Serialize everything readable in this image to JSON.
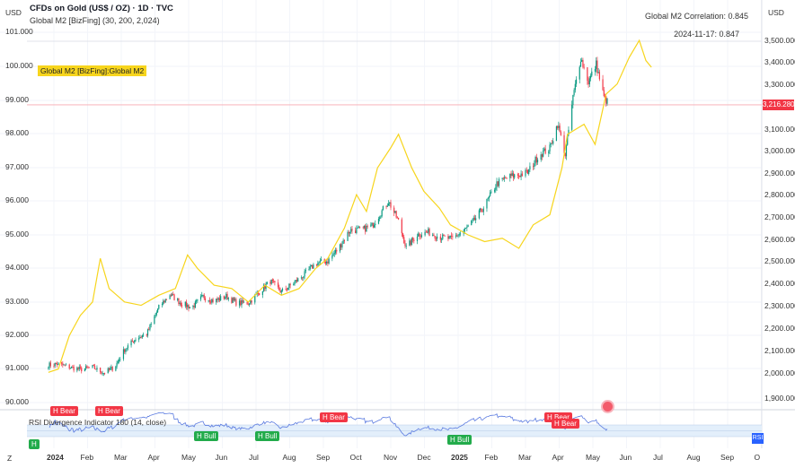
{
  "header": {
    "title": "CFDs on Gold (US$ / OZ) · 1D · TVC",
    "indicator": "Global M2 [BizFing] (30, 200, 2,024)",
    "left_currency": "USD",
    "right_currency": "USD"
  },
  "m2_tag": "Global M2 [BizFing]:Global M2",
  "correlation": {
    "overall": "Global M2 Correlation: 0.845",
    "point": "2024-11-17: 0.847"
  },
  "price_tag": "3,216.280",
  "left_axis": [
    "101.000",
    "100.000",
    "99.000",
    "98.000",
    "97.000",
    "96.000",
    "95.000",
    "94.000",
    "93.000",
    "92.000",
    "91.000",
    "90.000"
  ],
  "right_axis": [
    "3,500.000",
    "3,400.000",
    "3,300.000",
    "3,100.000",
    "3,000.000",
    "2,900.000",
    "2,800.000",
    "2,700.000",
    "2,600.000",
    "2,500.000",
    "2,400.000",
    "2,300.000",
    "2,200.000",
    "2,100.000",
    "2,000.000",
    "1,900.000"
  ],
  "time_axis": [
    "2024",
    "Feb",
    "Mar",
    "Apr",
    "May",
    "Jun",
    "Jul",
    "Aug",
    "Sep",
    "Oct",
    "Nov",
    "Dec",
    "2025",
    "Feb",
    "Mar",
    "Apr",
    "May",
    "Jun",
    "Jul",
    "Aug",
    "Sep",
    "O"
  ],
  "rsi": {
    "title": "RSI Divergence Indicator  180 (14, close)",
    "tag": "RSI",
    "labels": [
      {
        "text": "H Bear",
        "type": "bear"
      },
      {
        "text": "H Bear",
        "type": "bear"
      },
      {
        "text": "H Bear",
        "type": "bear"
      },
      {
        "text": "H Bear",
        "type": "bear"
      },
      {
        "text": "H Bear",
        "type": "bear"
      },
      {
        "text": "H Bull",
        "type": "bull"
      },
      {
        "text": "H Bull",
        "type": "bull"
      },
      {
        "text": "H Bull",
        "type": "bull"
      },
      {
        "text": "H",
        "type": "bull"
      }
    ]
  },
  "colors": {
    "up": "#089981",
    "down": "#f23645",
    "m2": "#f7d51d",
    "rsi": "#5b7be0",
    "rsi_band": "#e3effb"
  },
  "chart_data": {
    "type": "candlestick+line",
    "gold_close": [
      [
        "2023-12-27",
        2040
      ],
      [
        "2024-01-05",
        2045
      ],
      [
        "2024-01-15",
        2030
      ],
      [
        "2024-01-25",
        2020
      ],
      [
        "2024-02-05",
        2030
      ],
      [
        "2024-02-15",
        2005
      ],
      [
        "2024-02-25",
        2030
      ],
      [
        "2024-03-05",
        2110
      ],
      [
        "2024-03-15",
        2160
      ],
      [
        "2024-03-25",
        2180
      ],
      [
        "2024-04-05",
        2300
      ],
      [
        "2024-04-15",
        2360
      ],
      [
        "2024-04-25",
        2320
      ],
      [
        "2024-05-05",
        2300
      ],
      [
        "2024-05-15",
        2350
      ],
      [
        "2024-05-25",
        2330
      ],
      [
        "2024-06-05",
        2350
      ],
      [
        "2024-06-15",
        2320
      ],
      [
        "2024-06-25",
        2320
      ],
      [
        "2024-07-05",
        2370
      ],
      [
        "2024-07-15",
        2420
      ],
      [
        "2024-07-25",
        2370
      ],
      [
        "2024-08-05",
        2410
      ],
      [
        "2024-08-15",
        2450
      ],
      [
        "2024-08-25",
        2500
      ],
      [
        "2024-09-05",
        2510
      ],
      [
        "2024-09-15",
        2570
      ],
      [
        "2024-09-25",
        2650
      ],
      [
        "2024-10-05",
        2650
      ],
      [
        "2024-10-15",
        2670
      ],
      [
        "2024-10-30",
        2780
      ],
      [
        "2024-11-08",
        2690
      ],
      [
        "2024-11-15",
        2570
      ],
      [
        "2024-11-25",
        2630
      ],
      [
        "2024-12-05",
        2640
      ],
      [
        "2024-12-15",
        2620
      ],
      [
        "2024-12-25",
        2610
      ],
      [
        "2025-01-05",
        2640
      ],
      [
        "2025-01-15",
        2690
      ],
      [
        "2025-01-25",
        2760
      ],
      [
        "2025-02-05",
        2860
      ],
      [
        "2025-02-15",
        2890
      ],
      [
        "2025-02-25",
        2900
      ],
      [
        "2025-03-05",
        2910
      ],
      [
        "2025-03-15",
        2990
      ],
      [
        "2025-03-25",
        3020
      ],
      [
        "2025-04-01",
        3130
      ],
      [
        "2025-04-08",
        2990
      ],
      [
        "2025-04-15",
        3250
      ],
      [
        "2025-04-22",
        3430
      ],
      [
        "2025-04-29",
        3320
      ],
      [
        "2025-05-06",
        3400
      ],
      [
        "2025-05-13",
        3250
      ],
      [
        "2025-05-18",
        3216.28
      ]
    ],
    "m2": [
      [
        "2023-12-27",
        90.9
      ],
      [
        "2024-01-05",
        91.0
      ],
      [
        "2024-01-15",
        92.0
      ],
      [
        "2024-01-25",
        92.6
      ],
      [
        "2024-02-05",
        93.0
      ],
      [
        "2024-02-12",
        94.3
      ],
      [
        "2024-02-20",
        93.4
      ],
      [
        "2024-03-05",
        93.0
      ],
      [
        "2024-03-20",
        92.9
      ],
      [
        "2024-04-05",
        93.2
      ],
      [
        "2024-04-20",
        93.4
      ],
      [
        "2024-05-01",
        94.4
      ],
      [
        "2024-05-10",
        94.0
      ],
      [
        "2024-05-25",
        93.5
      ],
      [
        "2024-06-10",
        93.4
      ],
      [
        "2024-06-25",
        93.0
      ],
      [
        "2024-07-10",
        93.5
      ],
      [
        "2024-07-25",
        93.2
      ],
      [
        "2024-08-10",
        93.4
      ],
      [
        "2024-08-25",
        94.0
      ],
      [
        "2024-09-05",
        94.3
      ],
      [
        "2024-09-20",
        95.2
      ],
      [
        "2024-10-01",
        96.2
      ],
      [
        "2024-10-10",
        95.7
      ],
      [
        "2024-10-20",
        97.0
      ],
      [
        "2024-11-01",
        97.6
      ],
      [
        "2024-11-08",
        98.0
      ],
      [
        "2024-11-20",
        97.0
      ],
      [
        "2024-12-01",
        96.3
      ],
      [
        "2024-12-15",
        95.8
      ],
      [
        "2024-12-25",
        95.3
      ],
      [
        "2025-01-10",
        95.0
      ],
      [
        "2025-01-25",
        94.8
      ],
      [
        "2025-02-10",
        94.9
      ],
      [
        "2025-02-25",
        94.6
      ],
      [
        "2025-03-10",
        95.3
      ],
      [
        "2025-03-25",
        95.6
      ],
      [
        "2025-04-05",
        97.0
      ],
      [
        "2025-04-10",
        98.0
      ],
      [
        "2025-04-25",
        98.3
      ],
      [
        "2025-05-05",
        97.7
      ],
      [
        "2025-05-15",
        99.2
      ],
      [
        "2025-05-25",
        99.5
      ],
      [
        "2025-06-05",
        100.3
      ],
      [
        "2025-06-14",
        100.8
      ],
      [
        "2025-06-20",
        100.2
      ],
      [
        "2025-06-25",
        100.0
      ]
    ],
    "left_ylim": [
      90,
      101
    ],
    "right_ylim": [
      1900,
      3500
    ],
    "grid": true
  }
}
